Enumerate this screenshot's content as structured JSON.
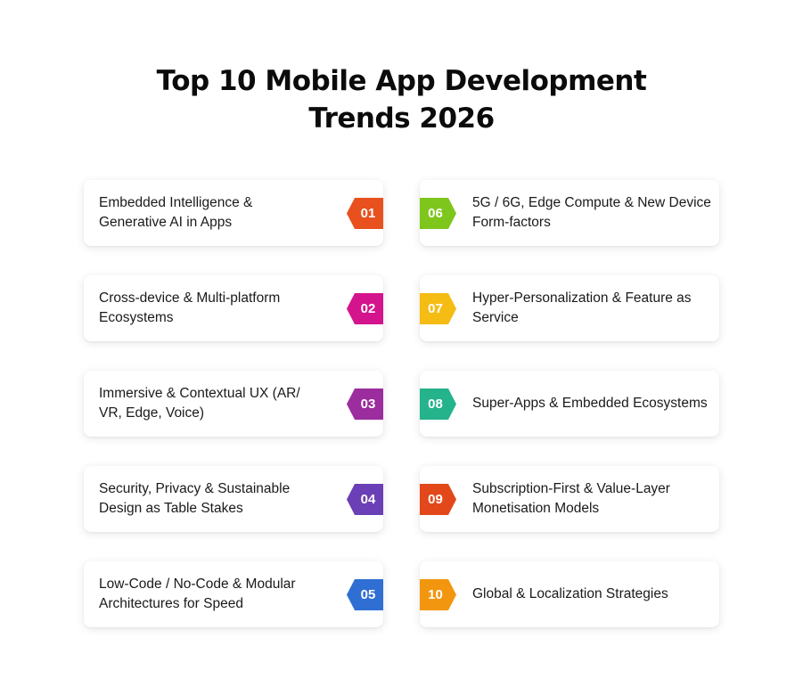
{
  "title": {
    "line1": "Top 10 Mobile App Development",
    "line2": "Trends 2026"
  },
  "left_column": [
    {
      "number": "01",
      "text": "Embedded Intelligence & Generative AI in Apps",
      "color": "#e8501e"
    },
    {
      "number": "02",
      "text": "Cross-device & Multi-platform Ecosystems",
      "color": "#d4148c"
    },
    {
      "number": "03",
      "text": "Immersive & Contextual UX (AR/ VR, Edge, Voice)",
      "color": "#9b2d9e"
    },
    {
      "number": "04",
      "text": "Security, Privacy & Sustainable Design as Table Stakes",
      "color": "#6b3fb5"
    },
    {
      "number": "05",
      "text": "Low-Code / No-Code & Modular Architectures for Speed",
      "color": "#2f6fd4"
    }
  ],
  "right_column": [
    {
      "number": "06",
      "text": "5G / 6G, Edge Compute & New Device Form-factors",
      "color": "#7ec61c"
    },
    {
      "number": "07",
      "text": "Hyper-Personalization & Feature as Service",
      "color": "#f5bc14"
    },
    {
      "number": "08",
      "text": "Super-Apps & Embedded Ecosystems",
      "color": "#25b38c"
    },
    {
      "number": "09",
      "text": "Subscription-First & Value-Layer Monetisation Models",
      "color": "#e2481a"
    },
    {
      "number": "10",
      "text": "Global & Localization Strategies",
      "color": "#f2960f"
    }
  ]
}
